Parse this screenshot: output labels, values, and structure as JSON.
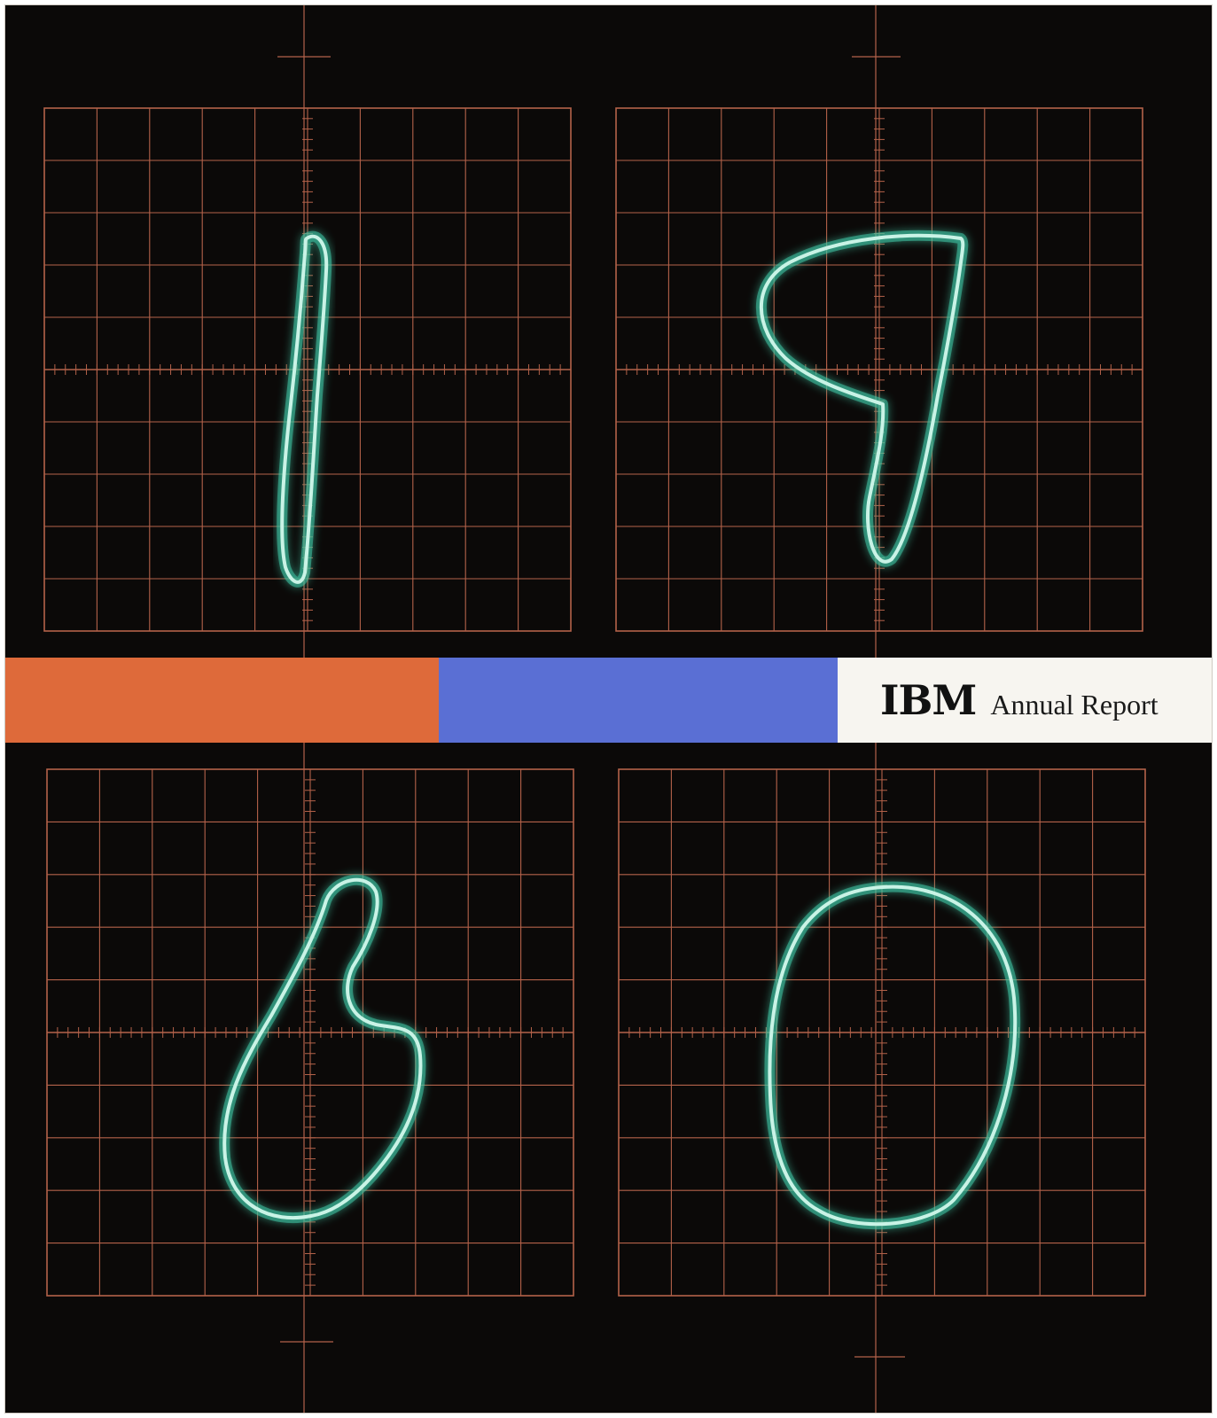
{
  "cover": {
    "logo": "IBM",
    "subtitle": "Annual Report",
    "year_digits": [
      "1",
      "9",
      "6",
      "0"
    ]
  },
  "colors": {
    "background": "#0b0908",
    "grid": "#b4624a",
    "trace": "#c9f3e6",
    "trace_glow": "#3ec6a6",
    "band_orange": "#de6a3a",
    "band_blue": "#5a6fd4",
    "band_white": "#f7f5f0"
  },
  "icons": {
    "screens": "oscilloscope-grid-icon",
    "traces": "oscilloscope-trace-icon"
  }
}
